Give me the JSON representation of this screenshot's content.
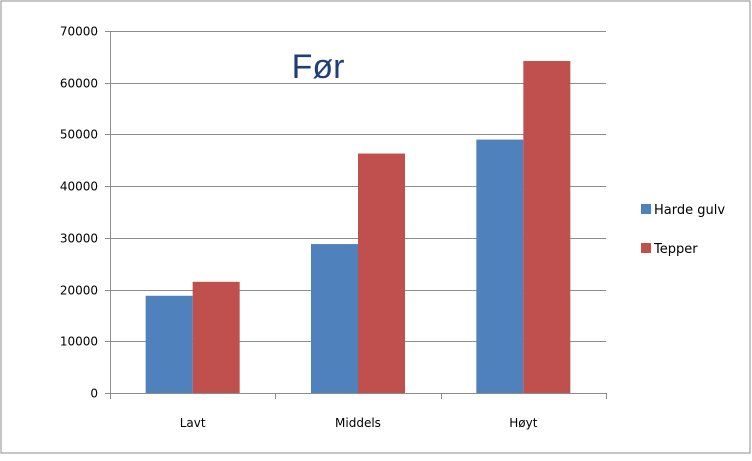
{
  "chart_data": {
    "type": "bar",
    "title": "Før",
    "categories": [
      "Lavt",
      "Middels",
      "Høyt"
    ],
    "series": [
      {
        "name": "Harde gulv",
        "values": [
          18800,
          28800,
          49000
        ],
        "color": "#4f81bd"
      },
      {
        "name": "Tepper",
        "values": [
          21500,
          46300,
          64200
        ],
        "color": "#c0504d"
      }
    ],
    "ylim": [
      0,
      70000
    ],
    "yticks": [
      0,
      10000,
      20000,
      30000,
      40000,
      50000,
      60000,
      70000
    ],
    "grid": true,
    "legend_position": "right"
  }
}
